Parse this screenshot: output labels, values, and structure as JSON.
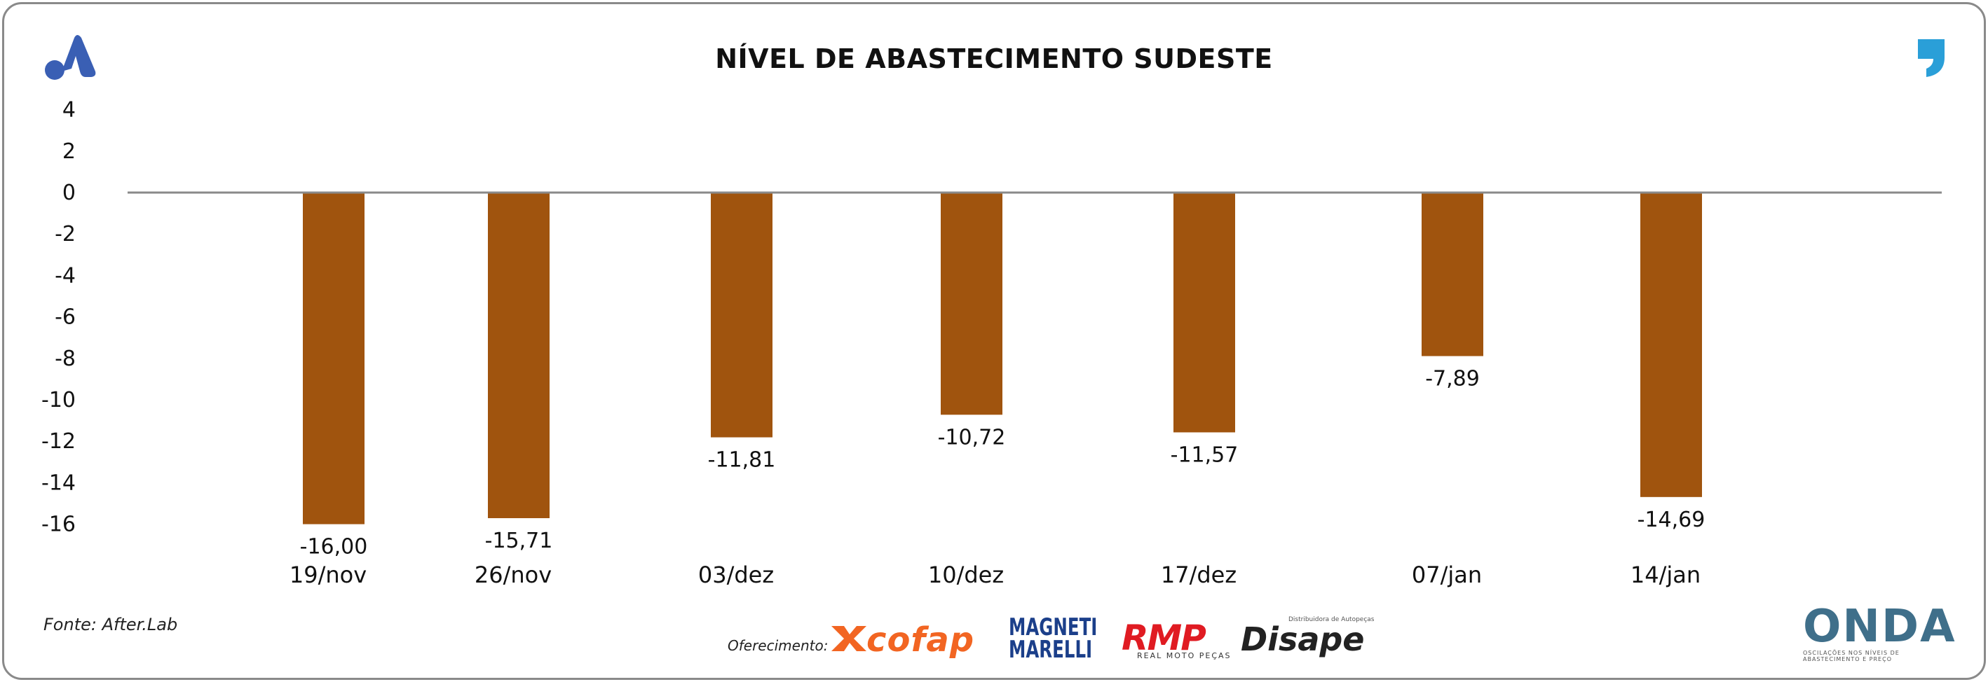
{
  "title": "NÍVEL DE ABASTECIMENTO SUDESTE",
  "source": "Fonte: After.Lab",
  "sponsor_label": "Oferecimento:",
  "sponsors": [
    "cofap",
    "MAGNETI MARELLI",
    "RMP",
    "REAL MOTO PEÇAS",
    "Disape",
    "Distribuidora de Autopeças"
  ],
  "footer_logo": "ONDA",
  "footer_logo_sub": "OSCILAÇÕES NOS NÍVEIS DE ABASTECIMENTO E PREÇO",
  "colors": {
    "bar": "#a0540e",
    "zero_line": "#8a8a8a",
    "a_logo": "#3a5fb4",
    "quote": "#2a9fd8"
  },
  "chart_data": {
    "type": "bar",
    "title": "NÍVEL DE ABASTECIMENTO SUDESTE",
    "categories": [
      "19/nov",
      "26/nov",
      "03/dez",
      "10/dez",
      "17/dez",
      "07/jan",
      "14/jan"
    ],
    "values": [
      -16.0,
      -15.71,
      -11.81,
      -10.72,
      -11.57,
      -7.89,
      -14.69
    ],
    "data_labels": [
      "-16,00",
      "-15,71",
      "-11,81",
      "-10,72",
      "-11,57",
      "-7,89",
      "-14,69"
    ],
    "yticks": [
      4,
      2,
      0,
      -2,
      -4,
      -6,
      -8,
      -10,
      -12,
      -14,
      -16
    ],
    "ylim": [
      -16,
      4
    ],
    "xlabel": "",
    "ylabel": "",
    "grid": false,
    "legend": "none"
  }
}
